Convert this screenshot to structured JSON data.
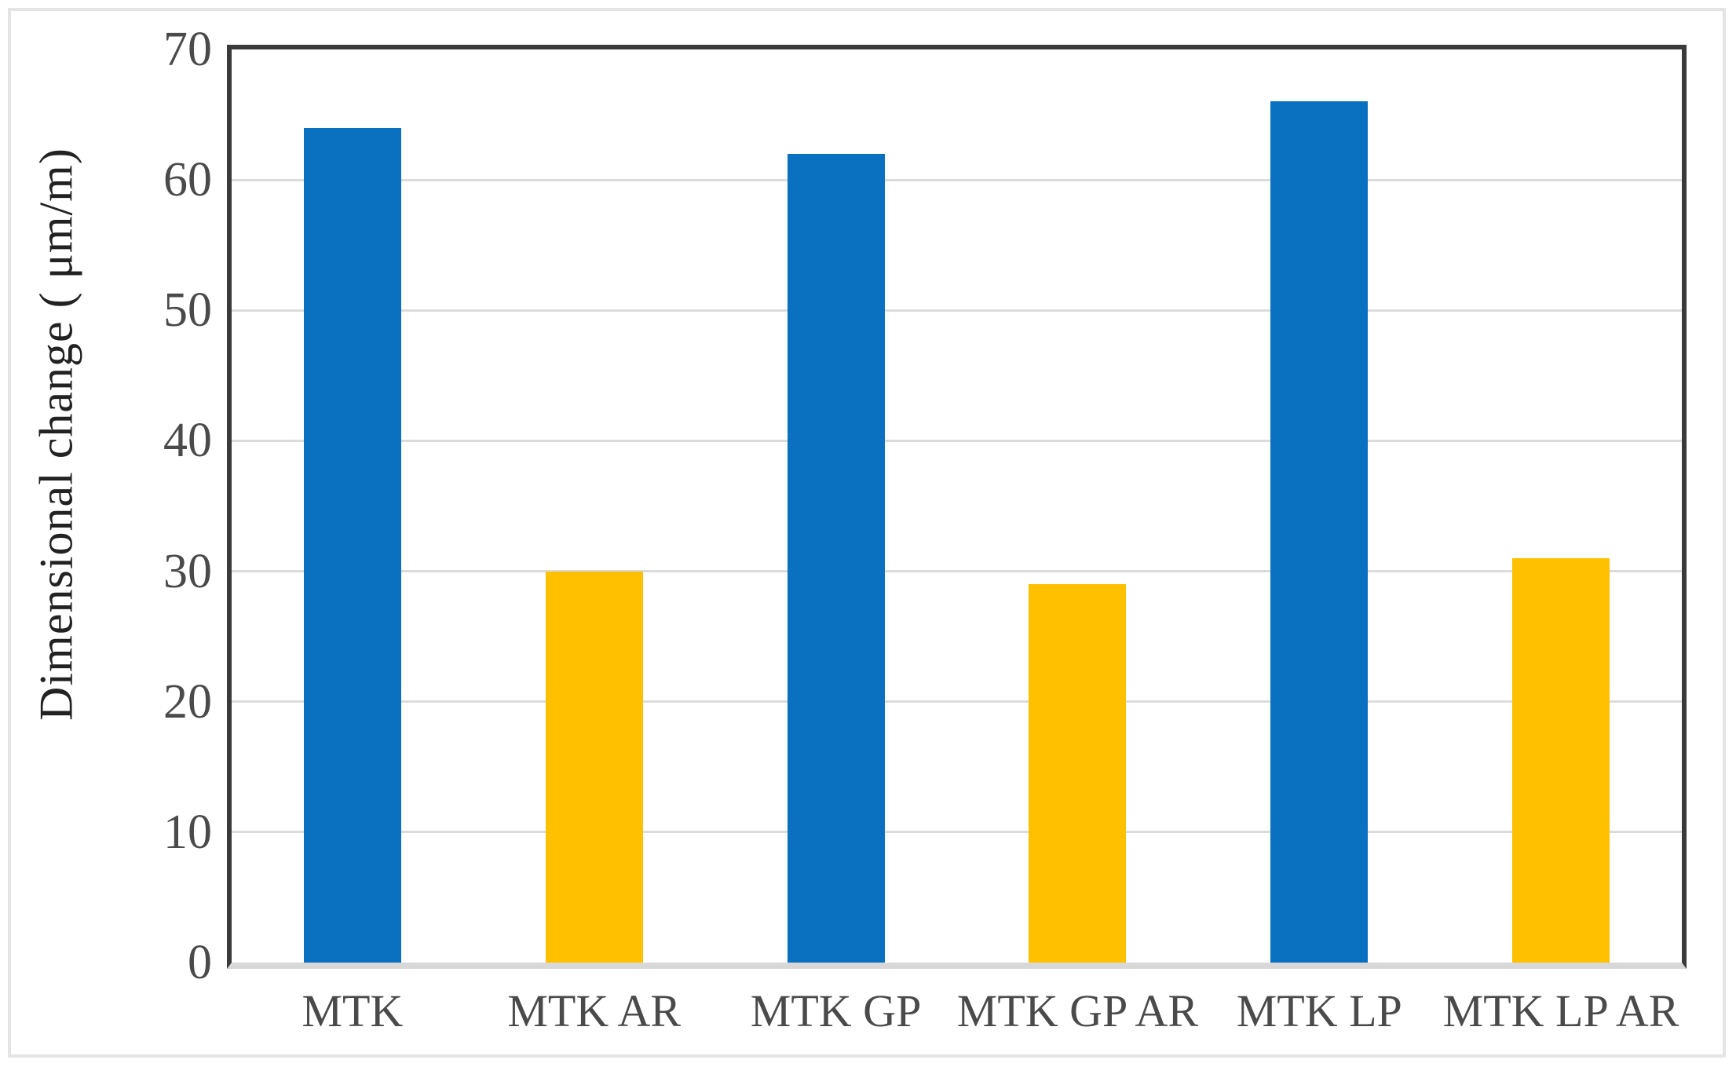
{
  "chart_data": {
    "type": "bar",
    "title": "",
    "xlabel": "",
    "ylabel": "Dimensional change ( μm/m)",
    "categories": [
      "MTK",
      "MTK AR",
      "MTK GP",
      "MTK GP AR",
      "MTK LP",
      "MTK LP AR"
    ],
    "values": [
      64,
      30,
      62,
      29,
      66,
      31
    ],
    "bar_colors": [
      "#0a70c0",
      "#ffc000",
      "#0a70c0",
      "#ffc000",
      "#0a70c0",
      "#ffc000"
    ],
    "ylim": [
      0,
      70
    ],
    "yticks": [
      0,
      10,
      20,
      30,
      40,
      50,
      60,
      70
    ],
    "grid": "horizontal-light",
    "legend": "none",
    "colors": {
      "series_blue": "#0a70c0",
      "series_gold": "#ffc000",
      "gridline": "#dbdbdb",
      "plot_border": "#3a3a3a",
      "baseline": "#d8d8d8",
      "tick_text": "#4a4a4a",
      "title_text": "#222222",
      "figure_border": "#e4e4e4"
    }
  }
}
